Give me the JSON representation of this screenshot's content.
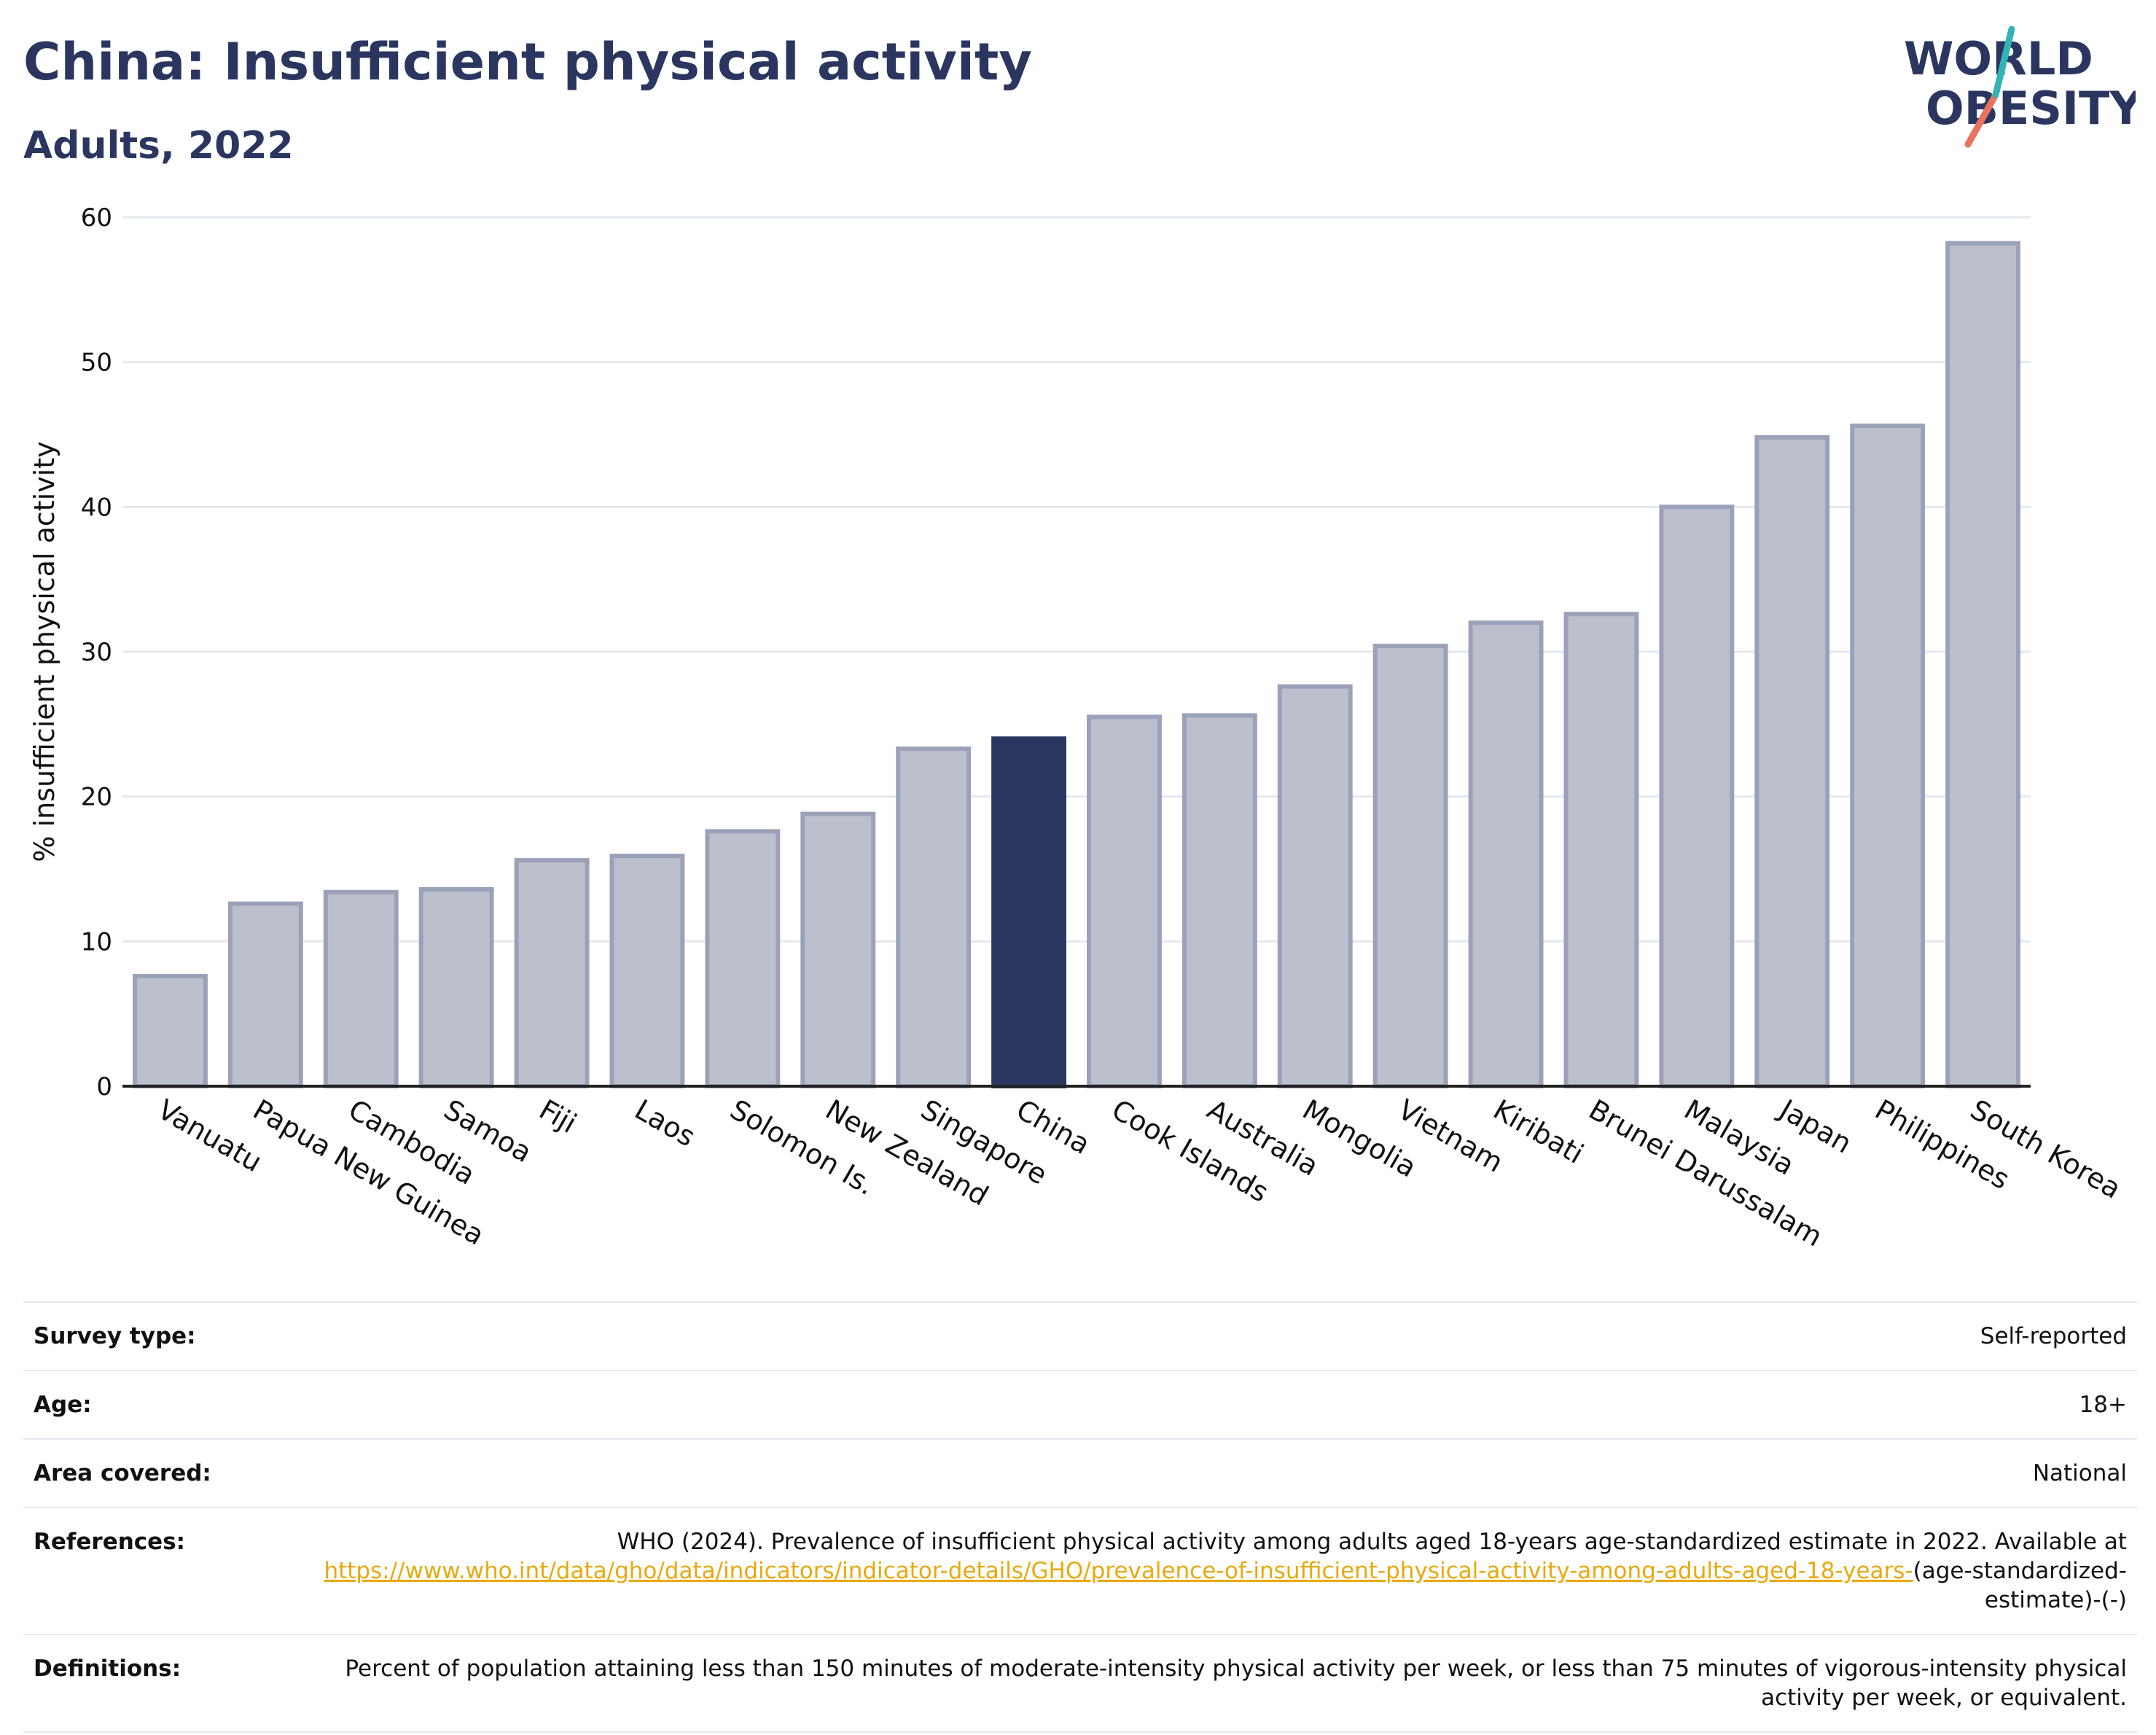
{
  "header": {
    "title": "China: Insufficient physical activity",
    "subtitle": "Adults, 2022"
  },
  "logo": {
    "line1": "WORLD",
    "line2": "OBESITY"
  },
  "chart_data": {
    "type": "bar",
    "title": "China: Insufficient physical activity",
    "subtitle": "Adults, 2022",
    "xlabel": "",
    "ylabel": "% insufficient physical activity",
    "ylim": [
      0,
      60
    ],
    "yticks": [
      0,
      10,
      20,
      30,
      40,
      50,
      60
    ],
    "grid": true,
    "highlight": "China",
    "colors": {
      "bar": "#bcc0cd",
      "bar_edge": "#9ba1b8",
      "highlight": "#2b3660",
      "grid": "#e6e8ef"
    },
    "categories": [
      "Vanuatu",
      "Papua New Guinea",
      "Cambodia",
      "Samoa",
      "Fiji",
      "Laos",
      "Solomon Is.",
      "New Zealand",
      "Singapore",
      "China",
      "Cook Islands",
      "Australia",
      "Mongolia",
      "Vietnam",
      "Kiribati",
      "Brunei Darussalam",
      "Malaysia",
      "Japan",
      "Philippines",
      "South Korea"
    ],
    "values": [
      7.6,
      12.6,
      13.4,
      13.6,
      15.6,
      15.9,
      17.6,
      18.8,
      23.3,
      24.0,
      25.5,
      25.6,
      27.6,
      30.4,
      32.0,
      32.6,
      40.0,
      44.8,
      45.6,
      58.2
    ]
  },
  "meta": {
    "survey_type": {
      "label": "Survey type:",
      "value": "Self-reported"
    },
    "age": {
      "label": "Age:",
      "value": "18+"
    },
    "area": {
      "label": "Area covered:",
      "value": "National"
    },
    "references": {
      "label": "References:",
      "text": "WHO (2024). Prevalence of insufficient physical activity among adults aged 18-years age-standardized estimate in 2022. Available at",
      "link": "https://www.who.int/data/gho/data/indicators/indicator-details/GHO/prevalence-of-insufficient-physical-activity-among-adults-aged-18-years-",
      "suffix": "(age-standardized-estimate)-(-)"
    },
    "definitions": {
      "label": "Definitions:",
      "value": "Percent of population attaining less than 150 minutes of moderate-intensity physical activity per week, or less than 75 minutes of vigorous-intensity physical activity per week, or equivalent."
    }
  }
}
